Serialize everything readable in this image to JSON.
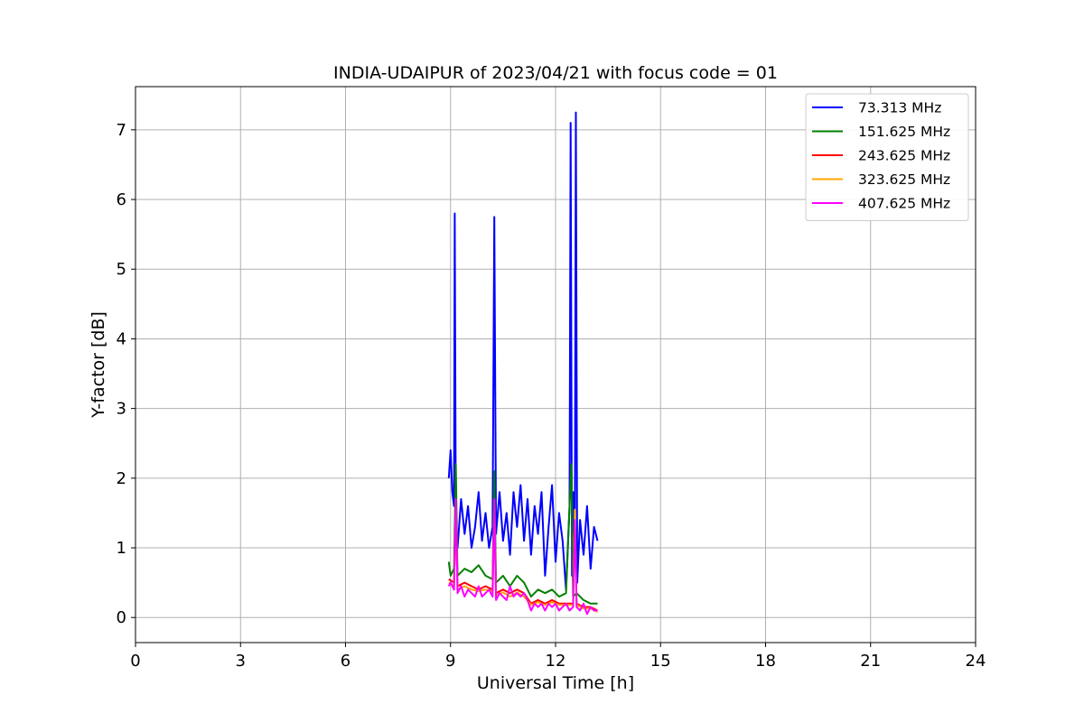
{
  "chart_data": {
    "type": "line",
    "title": "INDIA-UDAIPUR of 2023/04/21 with focus code = 01",
    "xlabel": "Universal Time [h]",
    "ylabel": "Y-factor [dB]",
    "xlim": [
      0,
      24
    ],
    "ylim": [
      -0.36,
      7.62
    ],
    "xticks": [
      "0",
      "3",
      "6",
      "9",
      "12",
      "15",
      "18",
      "21",
      "24"
    ],
    "yticks": [
      "0",
      "1",
      "2",
      "3",
      "4",
      "5",
      "6",
      "7"
    ],
    "grid": true,
    "legend_position": "top-right",
    "series": [
      {
        "name": " 73.313 MHz",
        "color": "#0000ff",
        "x": [
          8.95,
          9.0,
          9.05,
          9.1,
          9.12,
          9.15,
          9.2,
          9.3,
          9.4,
          9.5,
          9.6,
          9.7,
          9.8,
          9.9,
          10.0,
          10.1,
          10.2,
          10.25,
          10.3,
          10.4,
          10.5,
          10.6,
          10.7,
          10.8,
          10.9,
          11.0,
          11.1,
          11.2,
          11.3,
          11.4,
          11.5,
          11.6,
          11.7,
          11.8,
          11.9,
          12.0,
          12.1,
          12.2,
          12.3,
          12.4,
          12.43,
          12.47,
          12.5,
          12.55,
          12.58,
          12.62,
          12.7,
          12.8,
          12.9,
          13.0,
          13.1,
          13.2
        ],
        "y": [
          2.0,
          2.4,
          1.8,
          1.6,
          5.8,
          1.4,
          1.0,
          1.7,
          1.2,
          1.6,
          1.0,
          1.3,
          1.8,
          1.1,
          1.5,
          1.0,
          1.3,
          5.75,
          1.2,
          1.8,
          1.1,
          1.5,
          0.9,
          1.8,
          1.3,
          1.9,
          1.1,
          1.7,
          0.9,
          1.6,
          1.2,
          1.8,
          0.6,
          1.3,
          1.9,
          0.8,
          1.5,
          1.1,
          0.4,
          1.6,
          7.1,
          0.6,
          1.8,
          1.0,
          7.25,
          0.5,
          1.4,
          0.9,
          1.6,
          0.7,
          1.3,
          1.1
        ]
      },
      {
        "name": "151.625 MHz",
        "color": "#008000",
        "x": [
          8.95,
          9.0,
          9.1,
          9.15,
          9.2,
          9.4,
          9.6,
          9.8,
          10.0,
          10.2,
          10.25,
          10.3,
          10.5,
          10.7,
          10.9,
          11.1,
          11.3,
          11.5,
          11.7,
          11.9,
          12.1,
          12.3,
          12.45,
          12.5,
          12.6,
          12.8,
          13.0,
          13.2
        ],
        "y": [
          0.8,
          0.6,
          0.7,
          2.2,
          0.6,
          0.7,
          0.65,
          0.75,
          0.6,
          0.55,
          2.1,
          0.5,
          0.6,
          0.45,
          0.6,
          0.5,
          0.3,
          0.4,
          0.35,
          0.4,
          0.3,
          0.35,
          2.2,
          0.3,
          0.35,
          0.25,
          0.2,
          0.2
        ]
      },
      {
        "name": "243.625 MHz",
        "color": "#ff0000",
        "x": [
          8.95,
          9.1,
          9.15,
          9.2,
          9.4,
          9.6,
          9.8,
          10.0,
          10.2,
          10.25,
          10.3,
          10.5,
          10.7,
          10.9,
          11.1,
          11.3,
          11.5,
          11.7,
          11.9,
          12.1,
          12.3,
          12.5,
          12.55,
          12.6,
          12.8,
          13.0,
          13.2
        ],
        "y": [
          0.55,
          0.5,
          1.5,
          0.45,
          0.5,
          0.45,
          0.4,
          0.45,
          0.4,
          1.5,
          0.35,
          0.4,
          0.35,
          0.4,
          0.35,
          0.2,
          0.25,
          0.2,
          0.25,
          0.2,
          0.2,
          0.2,
          1.5,
          0.2,
          0.15,
          0.15,
          0.1
        ]
      },
      {
        "name": "323.625 MHz",
        "color": "#ffa500",
        "x": [
          8.95,
          9.1,
          9.15,
          9.2,
          9.4,
          9.6,
          9.8,
          10.0,
          10.2,
          10.25,
          10.3,
          10.5,
          10.7,
          10.9,
          11.1,
          11.3,
          11.5,
          11.7,
          11.9,
          12.1,
          12.3,
          12.5,
          12.55,
          12.6,
          12.8,
          13.0,
          13.2
        ],
        "y": [
          0.5,
          0.45,
          1.6,
          0.4,
          0.45,
          0.4,
          0.38,
          0.4,
          0.38,
          1.6,
          0.32,
          0.36,
          0.3,
          0.36,
          0.3,
          0.18,
          0.22,
          0.18,
          0.22,
          0.18,
          0.18,
          0.18,
          1.55,
          0.18,
          0.13,
          0.13,
          0.08
        ]
      },
      {
        "name": "407.625 MHz",
        "color": "#ff00ff",
        "x": [
          8.95,
          9.0,
          9.1,
          9.15,
          9.2,
          9.3,
          9.4,
          9.5,
          9.6,
          9.7,
          9.8,
          9.9,
          10.0,
          10.1,
          10.2,
          10.25,
          10.3,
          10.4,
          10.5,
          10.6,
          10.7,
          10.8,
          10.9,
          11.0,
          11.1,
          11.2,
          11.3,
          11.4,
          11.5,
          11.6,
          11.7,
          11.8,
          11.9,
          12.0,
          12.1,
          12.2,
          12.3,
          12.4,
          12.5,
          12.55,
          12.6,
          12.7,
          12.8,
          12.9,
          13.0,
          13.1,
          13.2
        ],
        "y": [
          0.45,
          0.5,
          0.4,
          1.7,
          0.35,
          0.45,
          0.3,
          0.4,
          0.35,
          0.3,
          0.45,
          0.3,
          0.35,
          0.4,
          0.3,
          1.7,
          0.25,
          0.35,
          0.3,
          0.25,
          0.45,
          0.3,
          0.35,
          0.3,
          0.35,
          0.25,
          0.1,
          0.2,
          0.15,
          0.2,
          0.1,
          0.2,
          0.15,
          0.2,
          0.1,
          0.15,
          0.2,
          0.1,
          0.15,
          1.4,
          0.15,
          0.1,
          0.2,
          0.05,
          0.15,
          0.1,
          0.1
        ]
      }
    ]
  }
}
